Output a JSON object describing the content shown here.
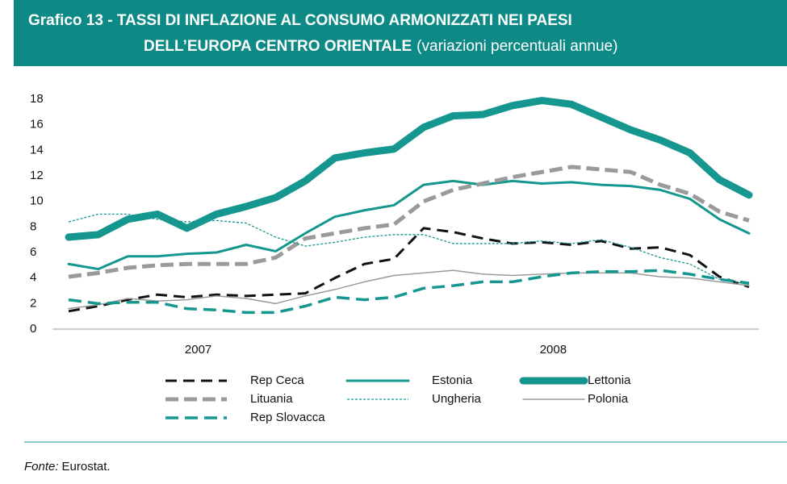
{
  "chart_data": {
    "type": "line",
    "title": [
      "Grafico 13 - TASSI DI INFLAZIONE AL CONSUMO ARMONIZZATI NEI PAESI",
      "DELL’EUROPA CENTRO ORIENTALE"
    ],
    "subtitle": "(variazioni percentuali annue)",
    "source_label": "Fonte:",
    "source": "Eurostat.",
    "categories": [
      null,
      null,
      null,
      null,
      "2007",
      null,
      null,
      null,
      null,
      null,
      null,
      null,
      null,
      null,
      null,
      null,
      "2008",
      null,
      null,
      null,
      null,
      null,
      null,
      null
    ],
    "ylim": [
      0,
      18
    ],
    "yticks": [
      0,
      2,
      4,
      6,
      8,
      10,
      12,
      14,
      16,
      18
    ],
    "grid": false,
    "series": [
      {
        "name": "Rep Ceca",
        "color": "#111111",
        "values": [
          1.4,
          1.8,
          2.3,
          2.7,
          2.5,
          2.7,
          2.6,
          2.7,
          2.8,
          4.0,
          5.1,
          5.5,
          7.9,
          7.6,
          7.1,
          6.7,
          6.8,
          6.6,
          6.9,
          6.3,
          6.4,
          5.8,
          4.1,
          3.3
        ]
      },
      {
        "name": "Estonia",
        "color": "#15978f",
        "values": [
          5.1,
          4.7,
          5.7,
          5.7,
          5.9,
          6.0,
          6.6,
          6.1,
          7.5,
          8.8,
          9.3,
          9.7,
          11.3,
          11.6,
          11.3,
          11.6,
          11.4,
          11.5,
          11.3,
          11.2,
          10.9,
          10.2,
          8.6,
          7.5
        ]
      },
      {
        "name": "Lettonia",
        "color": "#15978f",
        "values": [
          7.2,
          7.4,
          8.6,
          9.0,
          7.9,
          9.0,
          9.6,
          10.3,
          11.6,
          13.4,
          13.8,
          14.1,
          15.8,
          16.7,
          16.8,
          17.5,
          17.9,
          17.6,
          16.6,
          15.6,
          14.8,
          13.8,
          11.7,
          10.5
        ]
      },
      {
        "name": "Lituania",
        "color": "#9a9a9a",
        "values": [
          4.1,
          4.4,
          4.8,
          5.0,
          5.1,
          5.1,
          5.1,
          5.6,
          7.1,
          7.5,
          7.9,
          8.2,
          10.0,
          10.9,
          11.4,
          11.9,
          12.3,
          12.7,
          12.5,
          12.3,
          11.3,
          10.6,
          9.2,
          8.5
        ]
      },
      {
        "name": "Ungheria",
        "color": "#15978f",
        "values": [
          8.4,
          9.0,
          9.0,
          8.6,
          8.4,
          8.5,
          8.3,
          7.2,
          6.5,
          6.8,
          7.2,
          7.4,
          7.4,
          6.7,
          6.7,
          6.7,
          6.9,
          6.7,
          7.0,
          6.4,
          5.6,
          5.1,
          3.9,
          3.5
        ]
      },
      {
        "name": "Polonia",
        "color": "#9a9a9a",
        "values": [
          1.6,
          1.9,
          2.4,
          2.2,
          2.3,
          2.6,
          2.4,
          2.0,
          2.6,
          3.1,
          3.7,
          4.2,
          4.4,
          4.6,
          4.3,
          4.2,
          4.3,
          4.4,
          4.4,
          4.4,
          4.1,
          4.0,
          3.7,
          3.4
        ]
      },
      {
        "name": "Rep Slovacca",
        "color": "#15978f",
        "values": [
          2.3,
          2.0,
          2.1,
          2.1,
          1.6,
          1.5,
          1.3,
          1.3,
          1.8,
          2.5,
          2.3,
          2.5,
          3.2,
          3.4,
          3.7,
          3.7,
          4.1,
          4.4,
          4.5,
          4.5,
          4.6,
          4.3,
          3.9,
          3.6
        ]
      }
    ]
  }
}
